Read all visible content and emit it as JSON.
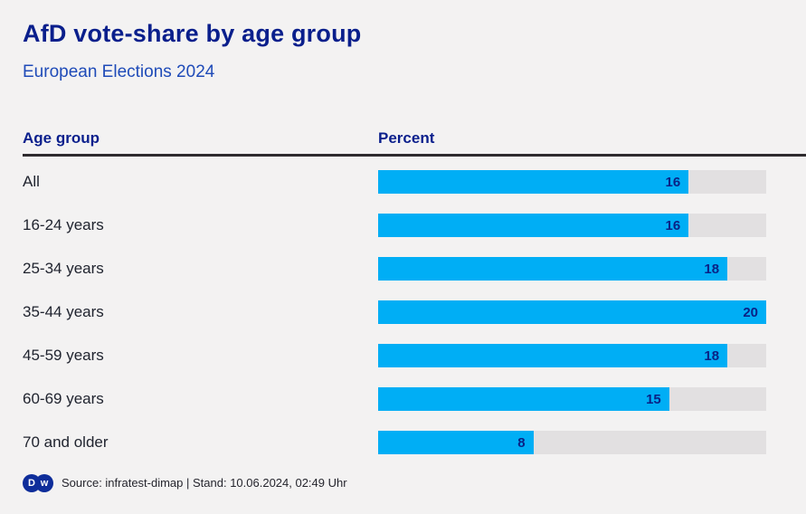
{
  "header": {
    "title": "AfD vote-share by age group",
    "subtitle": "European Elections 2024"
  },
  "table": {
    "col1_header": "Age group",
    "col2_header": "Percent"
  },
  "chart_data": {
    "type": "bar",
    "orientation": "horizontal",
    "title": "AfD vote-share by age group",
    "subtitle": "European Elections 2024",
    "xlabel": "Percent",
    "ylabel": "Age group",
    "xlim": [
      0,
      20
    ],
    "grid": false,
    "legend": false,
    "categories": [
      "All",
      "16-24 years",
      "25-34 years",
      "35-44 years",
      "45-59 years",
      "60-69 years",
      "70 and older"
    ],
    "values": [
      16,
      16,
      18,
      20,
      18,
      15,
      8
    ]
  },
  "footer": {
    "source_text": "Source: infratest-dimap | Stand: 10.06.2024, 02:49 Uhr",
    "dw_logo_left_letter": "D",
    "dw_logo_right_letter": "w"
  },
  "colors": {
    "background": "#f3f2f2",
    "bar_fill": "#00AEF5",
    "bar_track": "#E2E0E1",
    "title_navy": "#0A1F8C",
    "subtitle_blue": "#1F4BB8",
    "value_navy": "#0A2285",
    "label_text": "#20242F",
    "rule": "#2E2B2E",
    "footer_text": "#25252D",
    "dw_logo_navy": "#0E2D9A"
  }
}
